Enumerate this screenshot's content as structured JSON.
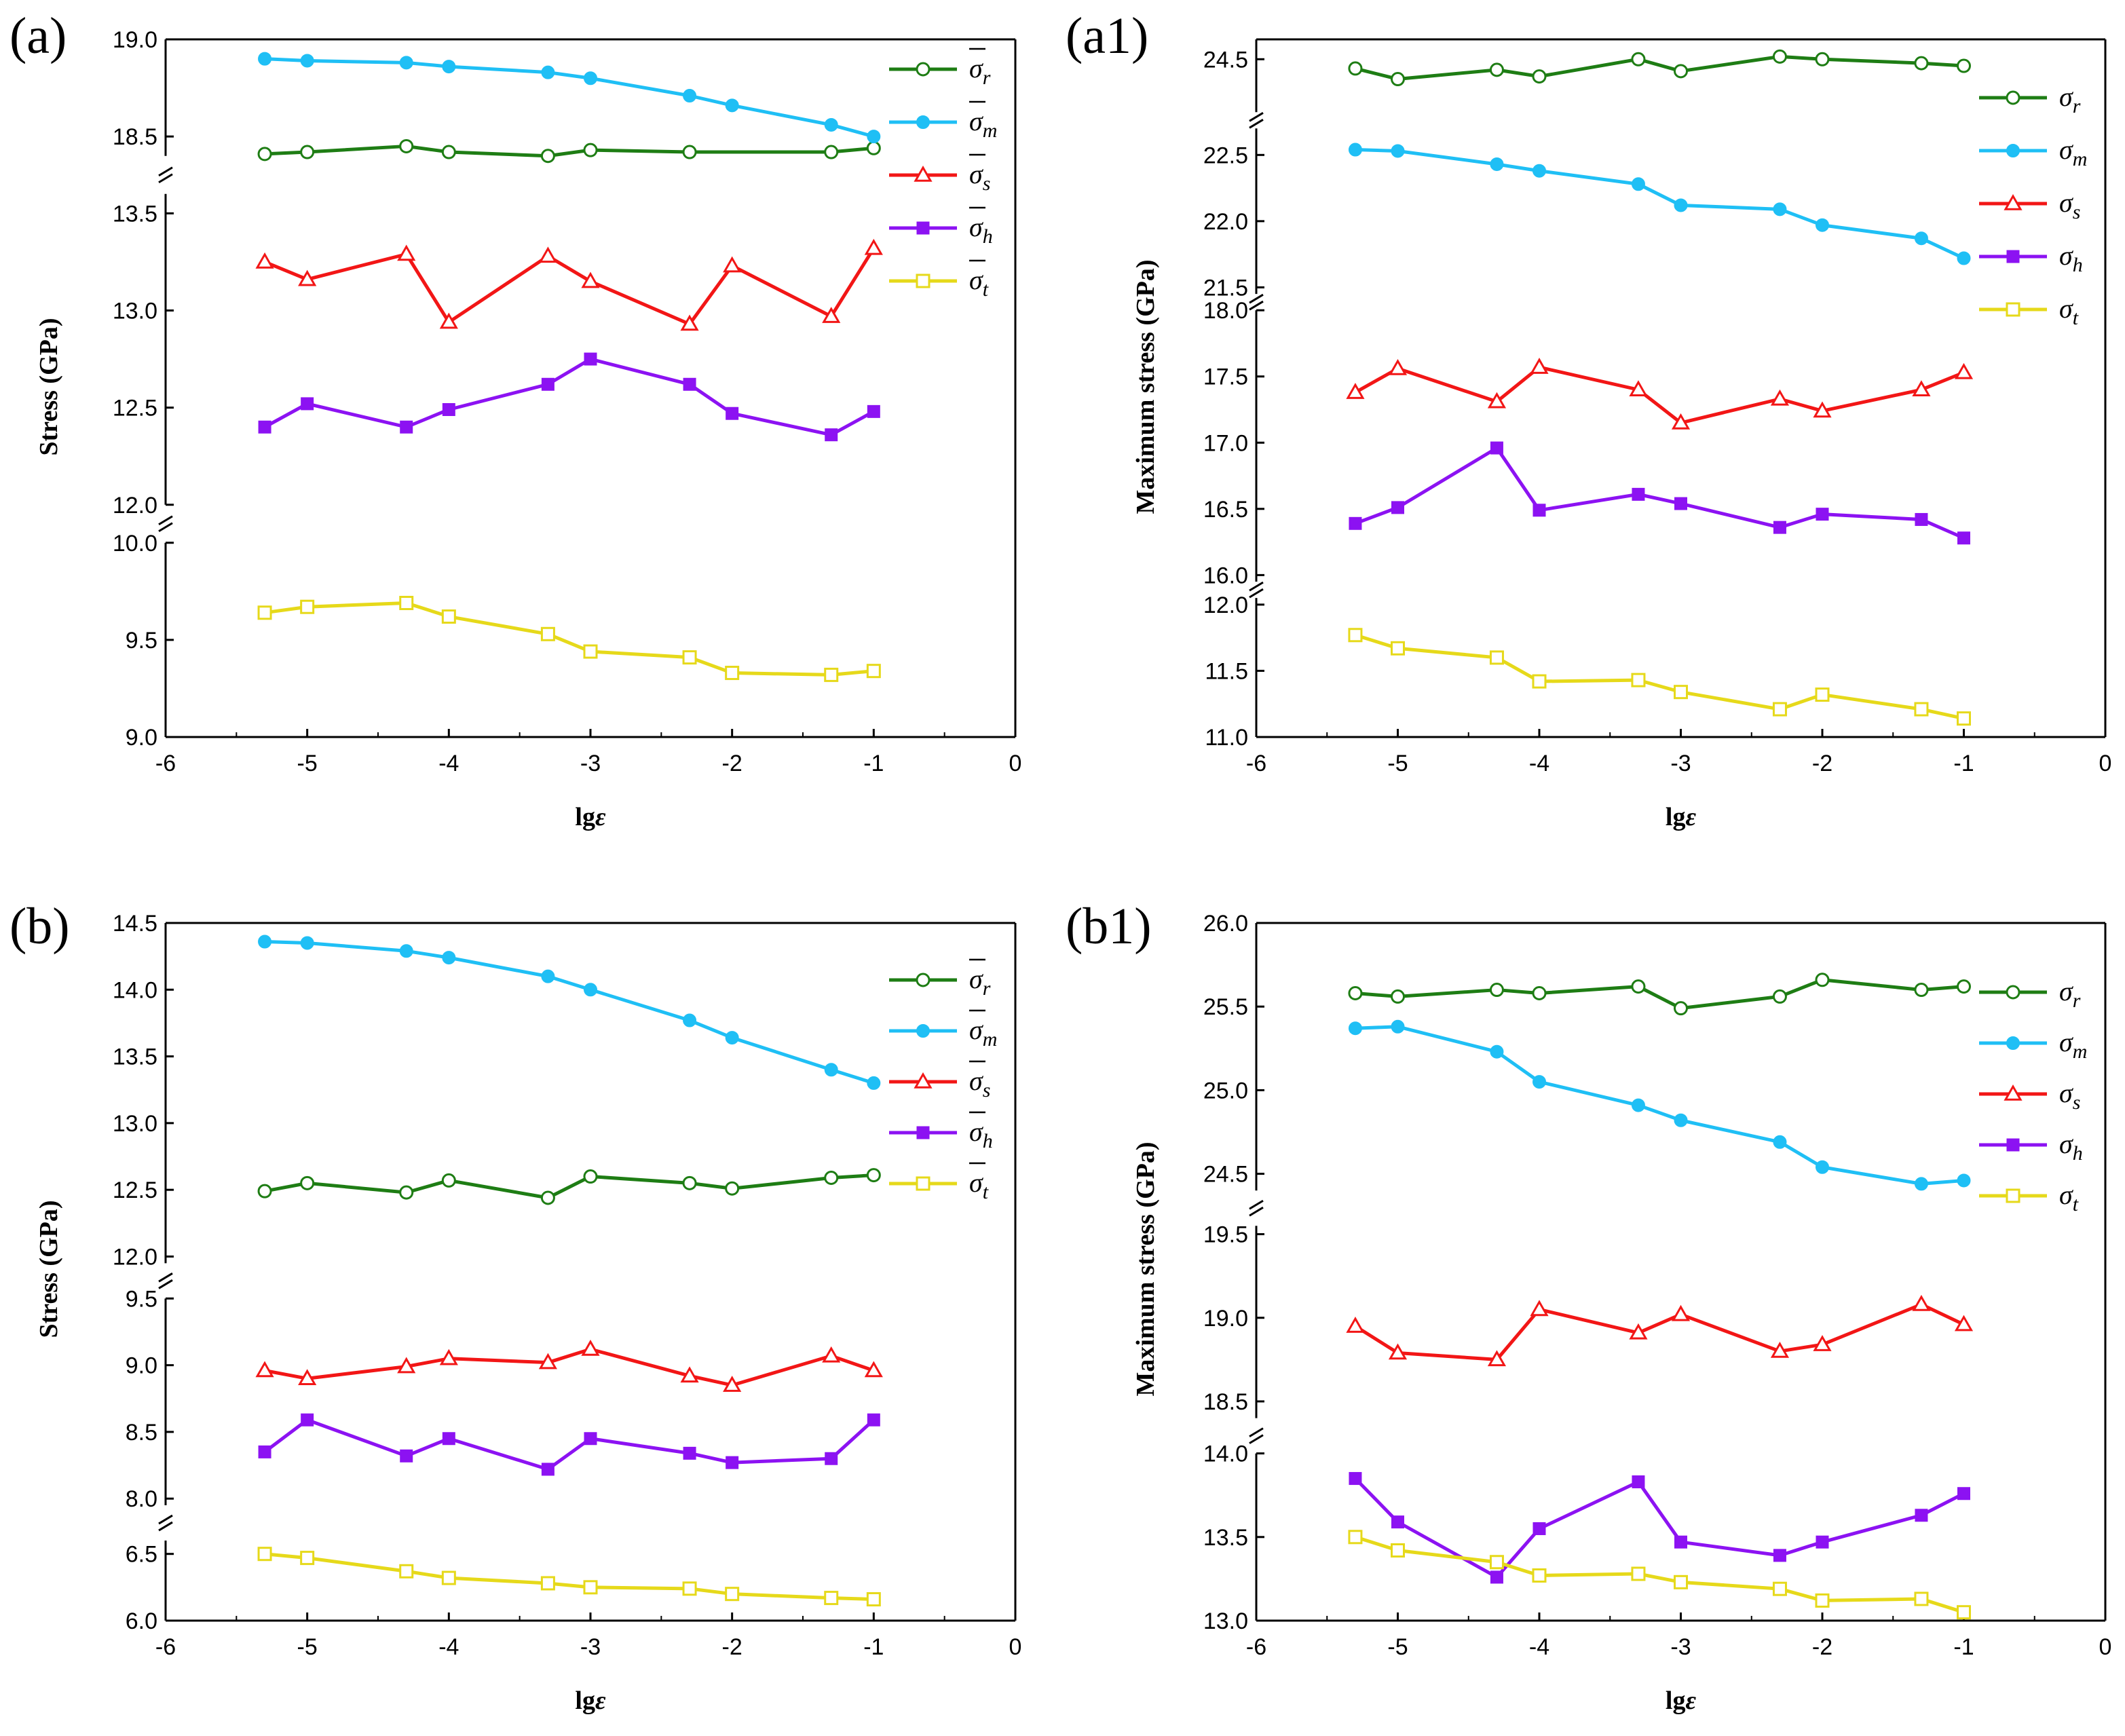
{
  "figure_title": "",
  "colors": {
    "r": "#1e7d14",
    "m": "#1fbff5",
    "s": "#f21616",
    "h": "#8c12f2",
    "t": "#e6d91a"
  },
  "series_order": [
    "r",
    "m",
    "s",
    "h",
    "t"
  ],
  "markers": {
    "r": "open-circle",
    "m": "filled-circle",
    "s": "open-triangle",
    "h": "filled-square",
    "t": "open-square"
  },
  "chart_data": [
    {
      "id": "a",
      "type": "line",
      "label": "(a)",
      "xlabel_main": "lg",
      "xlabel_var": "ε",
      "ylabel": "Stress (GPa)",
      "xlim": [
        -6,
        0
      ],
      "xticks": [
        "-6",
        "-5",
        "-4",
        "-3",
        "-2",
        "-1",
        "0"
      ],
      "segments": [
        {
          "range": [
            9.0,
            10.0
          ],
          "ticks": [
            "9.0",
            "9.5",
            "10.0"
          ]
        },
        {
          "range": [
            12.0,
            13.6
          ],
          "ticks": [
            "12.0",
            "12.5",
            "13.0",
            "13.5"
          ]
        },
        {
          "range": [
            18.4,
            19.0
          ],
          "ticks": [
            "18.5",
            "19.0"
          ]
        }
      ],
      "legend_bar": true,
      "series": [
        {
          "key": "r",
          "name": "σ",
          "sub": "r",
          "x": [
            -5.3,
            -5.0,
            -4.3,
            -4.0,
            -3.3,
            -3.0,
            -2.3,
            -2.0,
            -1.3,
            -1.0
          ],
          "values": [
            18.41,
            18.42,
            18.45,
            18.42,
            18.4,
            18.43,
            18.42,
            18.39,
            18.42,
            18.44
          ]
        },
        {
          "key": "m",
          "name": "σ",
          "sub": "m",
          "x": [
            -5.3,
            -5.0,
            -4.3,
            -4.0,
            -3.3,
            -3.0,
            -2.3,
            -2.0,
            -1.3,
            -1.0
          ],
          "values": [
            18.9,
            18.89,
            18.88,
            18.86,
            18.83,
            18.8,
            18.71,
            18.66,
            18.56,
            18.5
          ]
        },
        {
          "key": "s",
          "name": "σ",
          "sub": "s",
          "x": [
            -5.3,
            -5.0,
            -4.3,
            -4.0,
            -3.3,
            -3.0,
            -2.3,
            -2.0,
            -1.3,
            -1.0
          ],
          "values": [
            13.25,
            13.16,
            13.29,
            12.94,
            13.28,
            13.15,
            12.93,
            13.23,
            12.97,
            13.32
          ]
        },
        {
          "key": "h",
          "name": "σ",
          "sub": "h",
          "x": [
            -5.3,
            -5.0,
            -4.3,
            -4.0,
            -3.3,
            -3.0,
            -2.3,
            -2.0,
            -1.3,
            -1.0
          ],
          "values": [
            12.4,
            12.52,
            12.4,
            12.49,
            12.62,
            12.75,
            12.62,
            12.47,
            12.36,
            12.48
          ]
        },
        {
          "key": "t",
          "name": "σ",
          "sub": "t",
          "x": [
            -5.3,
            -5.0,
            -4.3,
            -4.0,
            -3.3,
            -3.0,
            -2.3,
            -2.0,
            -1.3,
            -1.0
          ],
          "values": [
            9.64,
            9.67,
            9.69,
            9.62,
            9.53,
            9.44,
            9.41,
            9.33,
            9.32,
            9.34
          ]
        }
      ]
    },
    {
      "id": "a1",
      "type": "line",
      "label": "(a1)",
      "xlabel_main": "lg",
      "xlabel_var": "ε",
      "ylabel": "Maximum stress (GPa)",
      "xlim": [
        -6,
        0
      ],
      "xticks": [
        "-6",
        "-5",
        "-4",
        "-3",
        "-2",
        "-1",
        "0"
      ],
      "segments": [
        {
          "range": [
            11.0,
            12.05
          ],
          "ticks": [
            "11.0",
            "11.5",
            "12.0"
          ]
        },
        {
          "range": [
            15.95,
            18.0
          ],
          "ticks": [
            "16.0",
            "16.5",
            "17.0",
            "17.5",
            "18.0"
          ]
        },
        {
          "range": [
            21.45,
            22.7
          ],
          "ticks": [
            "21.5",
            "22.0",
            "22.5"
          ]
        },
        {
          "range": [
            24.1,
            24.65
          ],
          "ticks": [
            "24.5"
          ]
        }
      ],
      "legend_bar": false,
      "series": [
        {
          "key": "r",
          "name": "σ",
          "sub": "r",
          "x": [
            -5.3,
            -5.0,
            -4.3,
            -4.0,
            -3.3,
            -3.0,
            -2.3,
            -2.0,
            -1.3,
            -1.0
          ],
          "values": [
            24.43,
            24.35,
            24.42,
            24.37,
            24.5,
            24.41,
            24.52,
            24.5,
            24.47,
            24.45
          ]
        },
        {
          "key": "m",
          "name": "σ",
          "sub": "m",
          "x": [
            -5.3,
            -5.0,
            -4.3,
            -4.0,
            -3.3,
            -3.0,
            -2.3,
            -2.0,
            -1.3,
            -1.0
          ],
          "values": [
            22.54,
            22.53,
            22.43,
            22.38,
            22.28,
            22.12,
            22.09,
            21.97,
            21.87,
            21.72
          ]
        },
        {
          "key": "s",
          "name": "σ",
          "sub": "s",
          "x": [
            -5.3,
            -5.0,
            -4.3,
            -4.0,
            -3.3,
            -3.0,
            -2.3,
            -2.0,
            -1.3,
            -1.0
          ],
          "values": [
            17.38,
            17.56,
            17.31,
            17.57,
            17.4,
            17.15,
            17.33,
            17.24,
            17.4,
            17.53
          ]
        },
        {
          "key": "h",
          "name": "σ",
          "sub": "h",
          "x": [
            -5.3,
            -5.0,
            -4.3,
            -4.0,
            -3.3,
            -3.0,
            -2.3,
            -2.0,
            -1.3,
            -1.0
          ],
          "values": [
            16.39,
            16.51,
            16.96,
            16.49,
            16.61,
            16.54,
            16.36,
            16.46,
            16.42,
            16.28
          ]
        },
        {
          "key": "t",
          "name": "σ",
          "sub": "t",
          "x": [
            -5.3,
            -5.0,
            -4.3,
            -4.0,
            -3.3,
            -3.0,
            -2.3,
            -2.0,
            -1.3,
            -1.0
          ],
          "values": [
            11.77,
            11.67,
            11.6,
            11.42,
            11.43,
            11.34,
            11.21,
            11.32,
            11.21,
            11.14
          ]
        }
      ]
    },
    {
      "id": "b",
      "type": "line",
      "label": "(b)",
      "xlabel_main": "lg",
      "xlabel_var": "ε",
      "ylabel": "Stress (GPa)",
      "xlim": [
        -6,
        0
      ],
      "xticks": [
        "-6",
        "-5",
        "-4",
        "-3",
        "-2",
        "-1",
        "0"
      ],
      "segments": [
        {
          "range": [
            6.0,
            6.6
          ],
          "ticks": [
            "6.0",
            "6.5"
          ]
        },
        {
          "range": [
            7.95,
            9.5
          ],
          "ticks": [
            "8.0",
            "8.5",
            "9.0",
            "9.5"
          ]
        },
        {
          "range": [
            11.95,
            14.5
          ],
          "ticks": [
            "12.0",
            "12.5",
            "13.0",
            "13.5",
            "14.0",
            "14.5"
          ]
        }
      ],
      "legend_bar": true,
      "series": [
        {
          "key": "r",
          "name": "σ",
          "sub": "r",
          "x": [
            -5.3,
            -5.0,
            -4.3,
            -4.0,
            -3.3,
            -3.0,
            -2.3,
            -2.0,
            -1.3,
            -1.0
          ],
          "values": [
            12.49,
            12.55,
            12.48,
            12.57,
            12.44,
            12.6,
            12.55,
            12.51,
            12.59,
            12.61
          ]
        },
        {
          "key": "m",
          "name": "σ",
          "sub": "m",
          "x": [
            -5.3,
            -5.0,
            -4.3,
            -4.0,
            -3.3,
            -3.0,
            -2.3,
            -2.0,
            -1.3,
            -1.0
          ],
          "values": [
            14.36,
            14.35,
            14.29,
            14.24,
            14.1,
            14.0,
            13.77,
            13.64,
            13.4,
            13.3
          ]
        },
        {
          "key": "s",
          "name": "σ",
          "sub": "s",
          "x": [
            -5.3,
            -5.0,
            -4.3,
            -4.0,
            -3.3,
            -3.0,
            -2.3,
            -2.0,
            -1.3,
            -1.0
          ],
          "values": [
            8.96,
            8.9,
            8.99,
            9.05,
            9.02,
            9.12,
            8.92,
            8.85,
            9.07,
            8.96
          ]
        },
        {
          "key": "h",
          "name": "σ",
          "sub": "h",
          "x": [
            -5.3,
            -5.0,
            -4.3,
            -4.0,
            -3.3,
            -3.0,
            -2.3,
            -2.0,
            -1.3,
            -1.0
          ],
          "values": [
            8.35,
            8.59,
            8.32,
            8.45,
            8.22,
            8.45,
            8.34,
            8.27,
            8.3,
            8.59
          ]
        },
        {
          "key": "t",
          "name": "σ",
          "sub": "t",
          "x": [
            -5.3,
            -5.0,
            -4.3,
            -4.0,
            -3.3,
            -3.0,
            -2.3,
            -2.0,
            -1.3,
            -1.0
          ],
          "values": [
            6.5,
            6.47,
            6.37,
            6.32,
            6.28,
            6.25,
            6.24,
            6.2,
            6.17,
            6.16
          ]
        }
      ]
    },
    {
      "id": "b1",
      "type": "line",
      "label": "(b1)",
      "xlabel_main": "lg",
      "xlabel_var": "ε",
      "ylabel": "Maximum stress (GPa)",
      "xlim": [
        -6,
        0
      ],
      "xticks": [
        "-6",
        "-5",
        "-4",
        "-3",
        "-2",
        "-1",
        "0"
      ],
      "segments": [
        {
          "range": [
            13.0,
            14.0
          ],
          "ticks": [
            "13.0",
            "13.5",
            "14.0"
          ]
        },
        {
          "range": [
            18.4,
            19.55
          ],
          "ticks": [
            "18.5",
            "19.0",
            "19.5"
          ]
        },
        {
          "range": [
            24.4,
            26.0
          ],
          "ticks": [
            "24.5",
            "25.0",
            "25.5",
            "26.0"
          ]
        }
      ],
      "legend_bar": false,
      "series": [
        {
          "key": "r",
          "name": "σ",
          "sub": "r",
          "x": [
            -5.3,
            -5.0,
            -4.3,
            -4.0,
            -3.3,
            -3.0,
            -2.3,
            -2.0,
            -1.3,
            -1.0
          ],
          "values": [
            25.58,
            25.56,
            25.6,
            25.58,
            25.62,
            25.49,
            25.56,
            25.66,
            25.6,
            25.62
          ]
        },
        {
          "key": "m",
          "name": "σ",
          "sub": "m",
          "x": [
            -5.3,
            -5.0,
            -4.3,
            -4.0,
            -3.3,
            -3.0,
            -2.3,
            -2.0,
            -1.3,
            -1.0
          ],
          "values": [
            25.37,
            25.38,
            25.23,
            25.05,
            24.91,
            24.82,
            24.69,
            24.54,
            24.44,
            24.46
          ]
        },
        {
          "key": "s",
          "name": "σ",
          "sub": "s",
          "x": [
            -5.3,
            -5.0,
            -4.3,
            -4.0,
            -3.3,
            -3.0,
            -2.3,
            -2.0,
            -1.3,
            -1.0
          ],
          "values": [
            18.95,
            18.79,
            18.75,
            19.05,
            18.91,
            19.02,
            18.8,
            18.84,
            19.08,
            18.96
          ]
        },
        {
          "key": "h",
          "name": "σ",
          "sub": "h",
          "x": [
            -5.3,
            -5.0,
            -4.3,
            -4.0,
            -3.3,
            -3.0,
            -2.3,
            -2.0,
            -1.3,
            -1.0
          ],
          "values": [
            13.85,
            13.59,
            13.26,
            13.55,
            13.83,
            13.47,
            13.39,
            13.47,
            13.63,
            13.76
          ]
        },
        {
          "key": "t",
          "name": "σ",
          "sub": "t",
          "x": [
            -5.3,
            -5.0,
            -4.3,
            -4.0,
            -3.3,
            -3.0,
            -2.3,
            -2.0,
            -1.3,
            -1.0
          ],
          "values": [
            13.5,
            13.42,
            13.35,
            13.27,
            13.28,
            13.23,
            13.19,
            13.12,
            13.13,
            13.05
          ]
        }
      ]
    }
  ]
}
